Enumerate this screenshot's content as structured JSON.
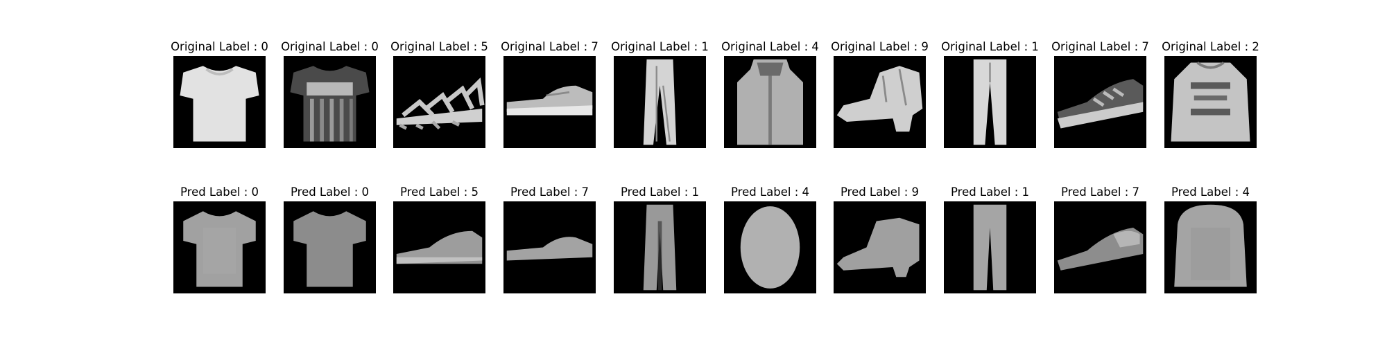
{
  "figure": {
    "rows": [
      {
        "name": "original",
        "panels": [
          {
            "title": "Original Label : 0",
            "item": "t-shirt"
          },
          {
            "title": "Original Label : 0",
            "item": "t-shirt-printed"
          },
          {
            "title": "Original Label : 5",
            "item": "sandal"
          },
          {
            "title": "Original Label : 7",
            "item": "sneaker"
          },
          {
            "title": "Original Label : 1",
            "item": "trouser"
          },
          {
            "title": "Original Label : 4",
            "item": "coat"
          },
          {
            "title": "Original Label : 9",
            "item": "ankle-boot"
          },
          {
            "title": "Original Label : 1",
            "item": "trouser"
          },
          {
            "title": "Original Label : 7",
            "item": "sneaker-dark"
          },
          {
            "title": "Original Label : 2",
            "item": "pullover"
          }
        ]
      },
      {
        "name": "pred",
        "panels": [
          {
            "title": "Pred Label : 0",
            "item": "t-shirt-blurred"
          },
          {
            "title": "Pred Label : 0",
            "item": "t-shirt-blurred"
          },
          {
            "title": "Pred Label : 5",
            "item": "sneaker-blurred"
          },
          {
            "title": "Pred Label : 7",
            "item": "sneaker-blurred"
          },
          {
            "title": "Pred Label : 1",
            "item": "trouser-blurred"
          },
          {
            "title": "Pred Label : 4",
            "item": "coat-blurred"
          },
          {
            "title": "Pred Label : 9",
            "item": "ankle-boot-blurred"
          },
          {
            "title": "Pred Label : 1",
            "item": "trouser-blurred"
          },
          {
            "title": "Pred Label : 7",
            "item": "sneaker-blurred"
          },
          {
            "title": "Pred Label : 4",
            "item": "pullover-blurred"
          }
        ]
      }
    ]
  }
}
